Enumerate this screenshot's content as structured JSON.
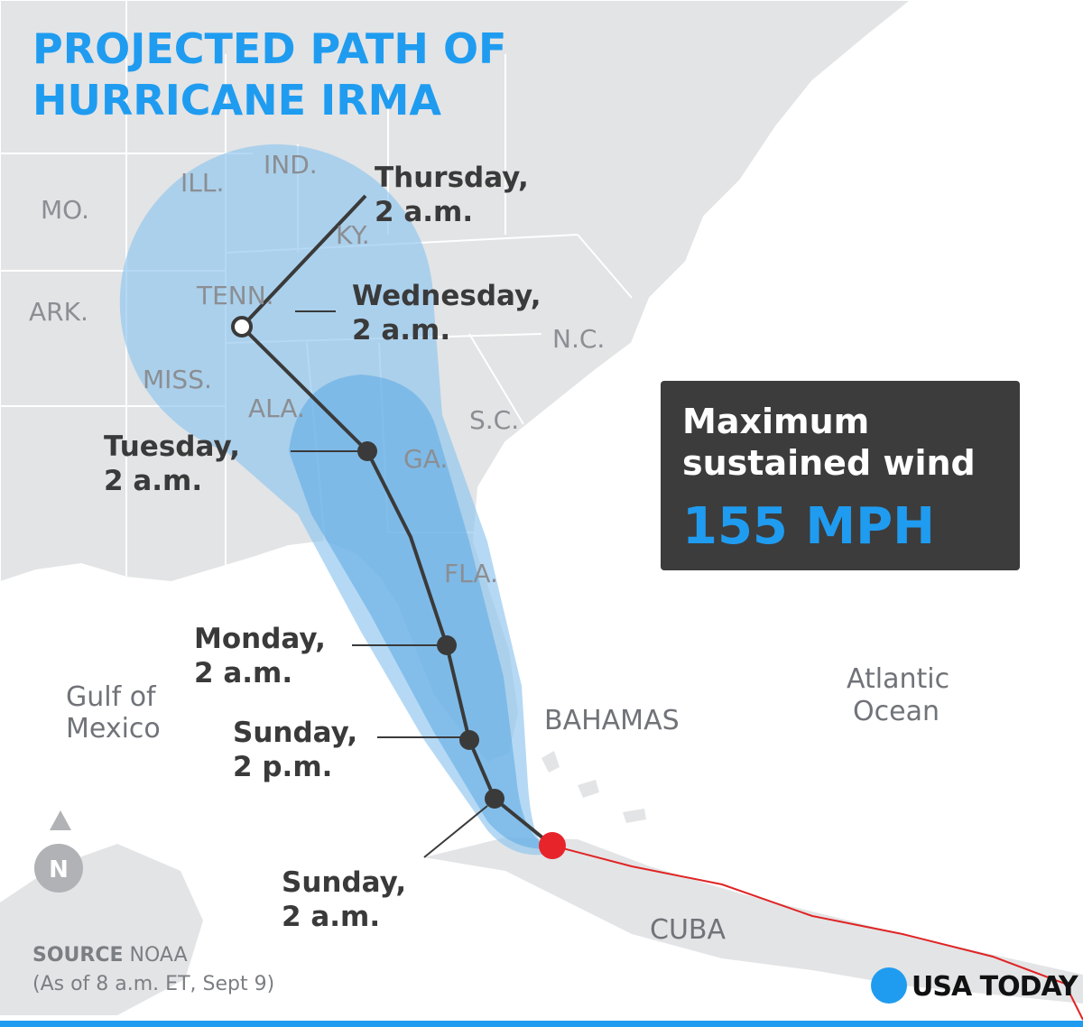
{
  "title": {
    "lines": [
      "PROJECTED PATH OF",
      "HURRICANE IRMA"
    ]
  },
  "states": [
    "MO.",
    "ILL.",
    "IND.",
    "KY.",
    "ARK.",
    "TENN.",
    "MISS.",
    "ALA.",
    "GA.",
    "S.C.",
    "N.C.",
    "FLA."
  ],
  "places": {
    "gulf": [
      "Gulf of",
      "Mexico"
    ],
    "atlantic": [
      "Atlantic",
      "Ocean"
    ],
    "bahamas": "BAHAMAS",
    "cuba": "CUBA"
  },
  "forecast": [
    {
      "day": "Thursday,",
      "time": "2 a.m."
    },
    {
      "day": "Wednesday,",
      "time": "2 a.m."
    },
    {
      "day": "Tuesday,",
      "time": "2 a.m."
    },
    {
      "day": "Monday,",
      "time": "2 a.m."
    },
    {
      "day": "Sunday,",
      "time": "2 p.m."
    },
    {
      "day": "Sunday,",
      "time": "2 a.m."
    }
  ],
  "wind_box": {
    "line1": "Maximum",
    "line2": "sustained wind",
    "value": "155 MPH"
  },
  "source": {
    "label": "SOURCE",
    "name": "NOAA",
    "note": "(As of 8 a.m. ET, Sept 9)"
  },
  "compass": "N",
  "logo": "USA TODAY"
}
